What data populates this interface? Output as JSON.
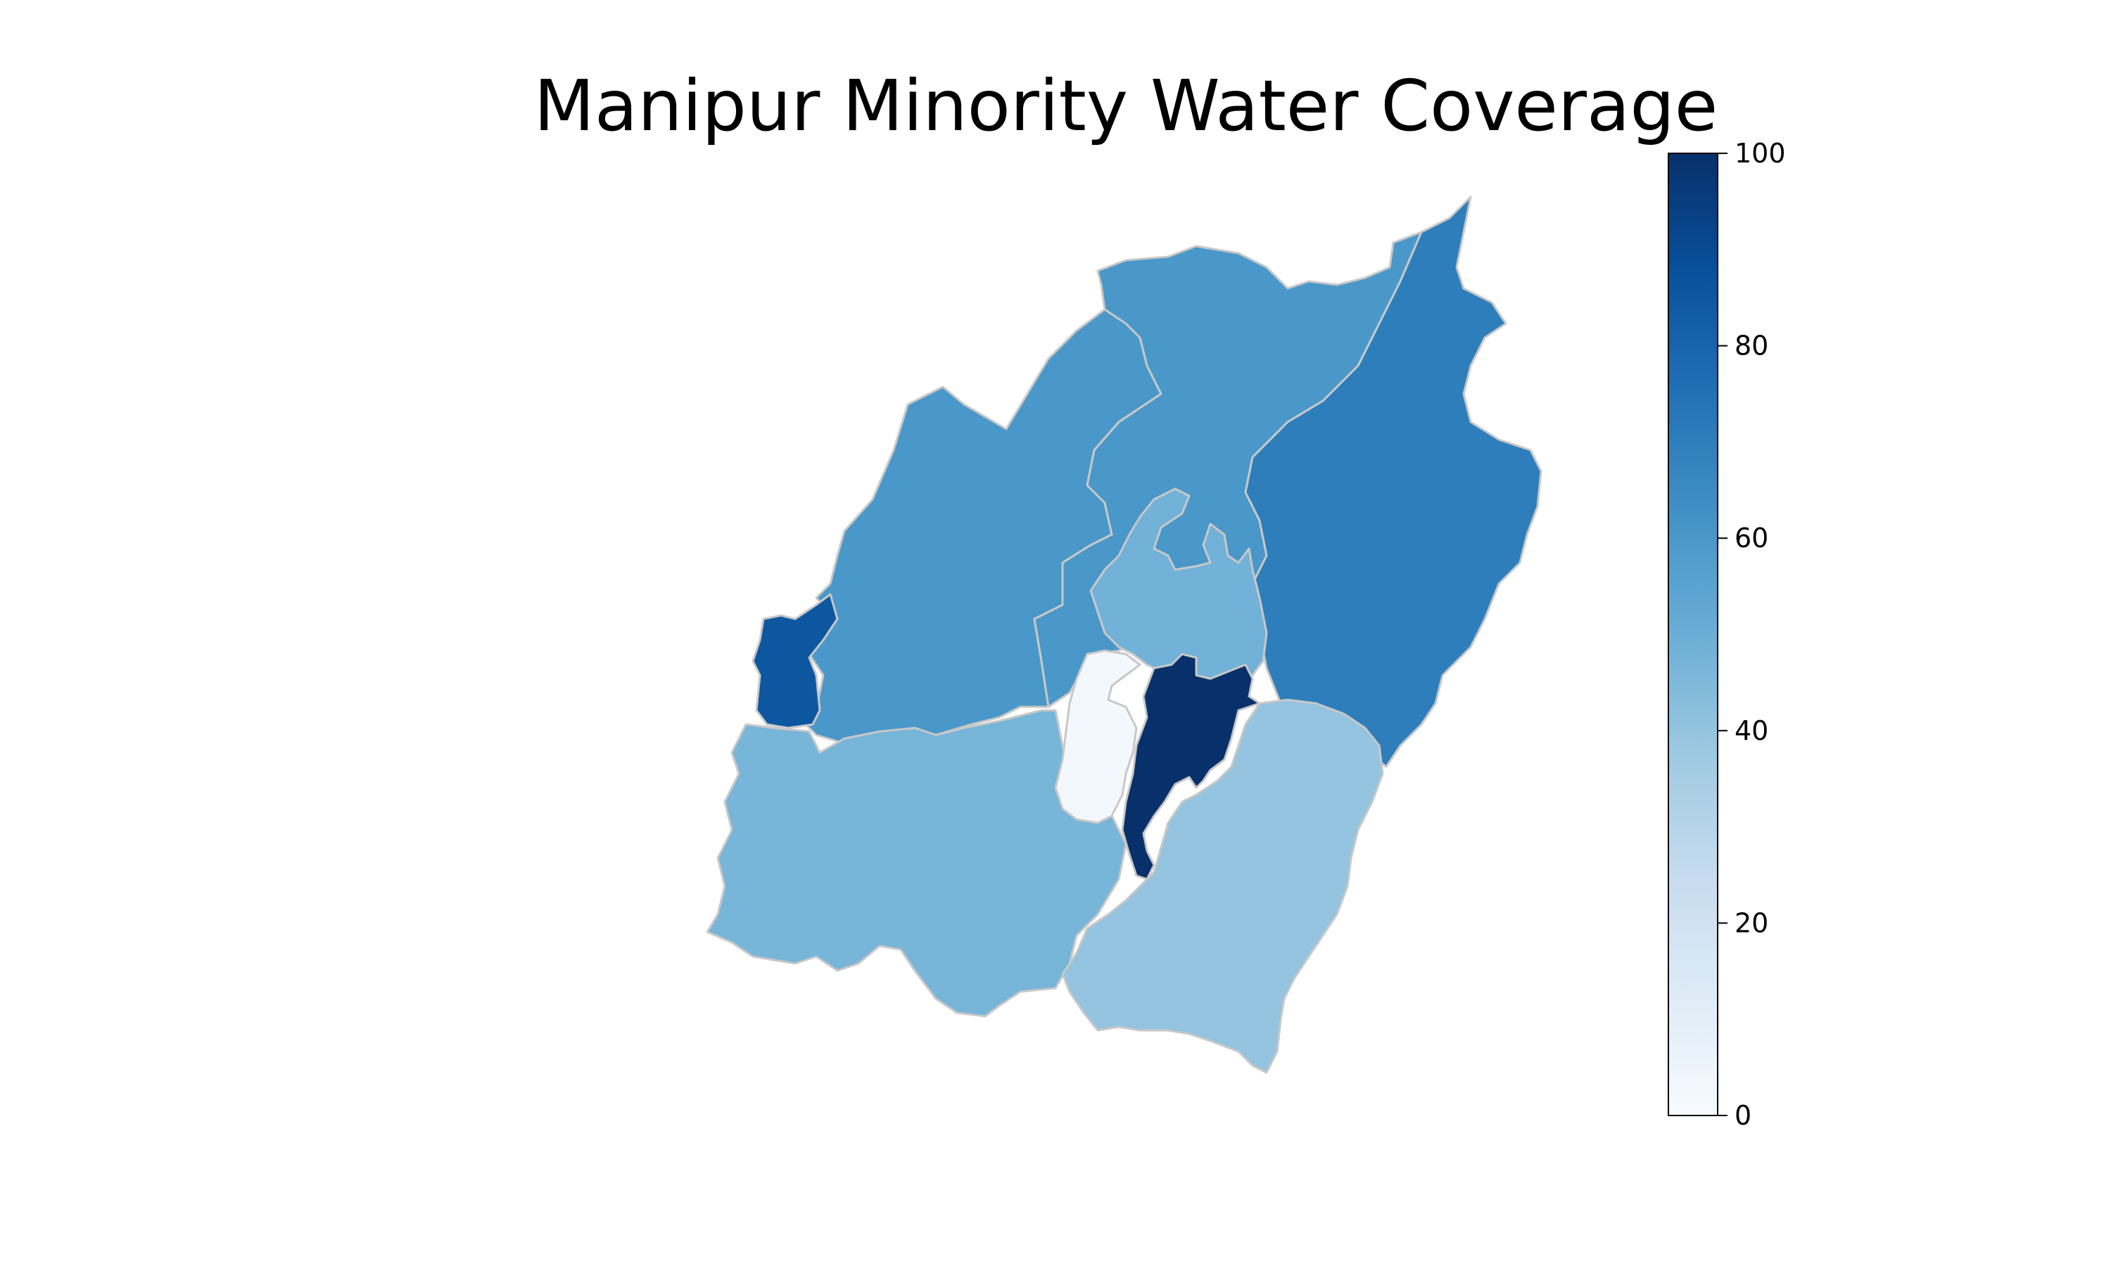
{
  "title": "Manipur Minority Water Coverage",
  "colormap": {
    "name": "Blues",
    "min": 0,
    "max": 100,
    "stops": [
      "#f7fbff",
      "#deebf7",
      "#c6dbef",
      "#9ecae1",
      "#6baed6",
      "#4292c6",
      "#2171b5",
      "#08519c",
      "#08306b"
    ]
  },
  "colorbar": {
    "ticks": [
      {
        "value": 0,
        "label": "0"
      },
      {
        "value": 20,
        "label": "20"
      },
      {
        "value": 40,
        "label": "40"
      },
      {
        "value": 60,
        "label": "60"
      },
      {
        "value": 80,
        "label": "80"
      },
      {
        "value": 100,
        "label": "100"
      }
    ]
  },
  "regions": [
    {
      "id": "north-west",
      "value": 60
    },
    {
      "id": "north-central",
      "value": 60
    },
    {
      "id": "east",
      "value": 70
    },
    {
      "id": "west-small",
      "value": 85
    },
    {
      "id": "south-west",
      "value": 47
    },
    {
      "id": "central",
      "value": 48
    },
    {
      "id": "valley-west",
      "value": 2
    },
    {
      "id": "valley-east",
      "value": 100
    },
    {
      "id": "south-east",
      "value": 40
    }
  ]
}
